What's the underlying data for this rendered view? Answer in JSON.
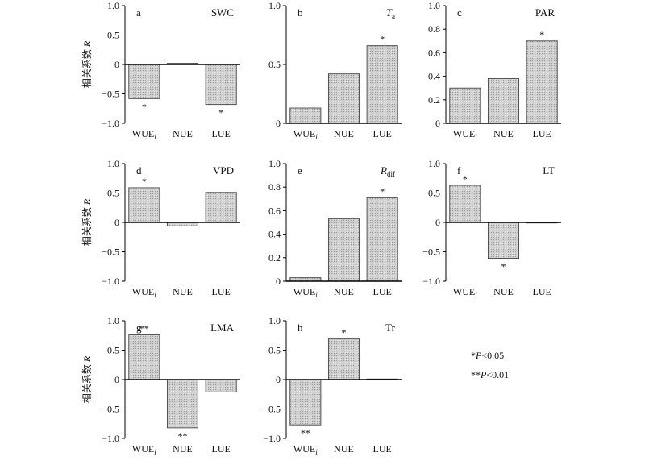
{
  "colors": {
    "bar_fill": "#cfcfcf",
    "bar_stroke": "#444444",
    "axis": "#000000"
  },
  "y_axis_label_prefix": "相关系数",
  "y_axis_label_var": "R",
  "categories": [
    "WUE",
    "NUE",
    "LUE"
  ],
  "first_category_subscript": "i",
  "legend": {
    "line1": {
      "stars": "*",
      "p": "P",
      "rest": "<0.05"
    },
    "line2": {
      "stars": "**",
      "p": "P",
      "rest": "<0.01"
    }
  },
  "chart_data": [
    {
      "type": "bar",
      "letter": "a",
      "title": "SWC",
      "title_main": "SWC",
      "title_sub": "",
      "title_italic": false,
      "categories": [
        "WUEi",
        "NUE",
        "LUE"
      ],
      "values": [
        -0.58,
        0.02,
        -0.68
      ],
      "marks": [
        "*",
        "",
        "*"
      ],
      "ylim": [
        -1.0,
        1.0
      ],
      "yticks": [
        "1.0",
        "0.5",
        "0",
        "−0.5",
        "−1.0"
      ],
      "ylabel": "相关系数 R"
    },
    {
      "type": "bar",
      "letter": "b",
      "title": "Ta",
      "title_main": "T",
      "title_sub": "a",
      "title_italic": true,
      "categories": [
        "WUEi",
        "NUE",
        "LUE"
      ],
      "values": [
        0.13,
        0.42,
        0.66
      ],
      "marks": [
        "",
        "",
        "*"
      ],
      "ylim": [
        0,
        1.0
      ],
      "yticks": [
        "1.0",
        "0.5",
        "0"
      ],
      "ylabel": ""
    },
    {
      "type": "bar",
      "letter": "c",
      "title": "PAR",
      "title_main": "PAR",
      "title_sub": "",
      "title_italic": false,
      "categories": [
        "WUEi",
        "NUE",
        "LUE"
      ],
      "values": [
        0.3,
        0.38,
        0.7
      ],
      "marks": [
        "",
        "",
        "*"
      ],
      "ylim": [
        0,
        1.0
      ],
      "yticks": [
        "1.0",
        "0.8",
        "0.6",
        "0.4",
        "0.2",
        "0"
      ],
      "ylabel": ""
    },
    {
      "type": "bar",
      "letter": "d",
      "title": "VPD",
      "title_main": "VPD",
      "title_sub": "",
      "title_italic": false,
      "categories": [
        "WUEi",
        "NUE",
        "LUE"
      ],
      "values": [
        0.59,
        -0.06,
        0.51
      ],
      "marks": [
        "*",
        "",
        ""
      ],
      "ylim": [
        -1.0,
        1.0
      ],
      "yticks": [
        "1.0",
        "0.5",
        "0",
        "−0.5",
        "−1.0"
      ],
      "ylabel": "相关系数 R"
    },
    {
      "type": "bar",
      "letter": "e",
      "title": "Rdif",
      "title_main": "R",
      "title_sub": "dif",
      "title_italic": true,
      "categories": [
        "WUEi",
        "NUE",
        "LUE"
      ],
      "values": [
        0.03,
        0.53,
        0.71
      ],
      "marks": [
        "",
        "",
        "*"
      ],
      "ylim": [
        0,
        1.0
      ],
      "yticks": [
        "1.0",
        "0.8",
        "0.6",
        "0.4",
        "0.2",
        "0"
      ],
      "ylabel": ""
    },
    {
      "type": "bar",
      "letter": "f",
      "title": "LT",
      "title_main": "LT",
      "title_sub": "",
      "title_italic": false,
      "categories": [
        "WUEi",
        "NUE",
        "LUE"
      ],
      "values": [
        0.63,
        -0.61,
        -0.01
      ],
      "marks": [
        "*",
        "*",
        ""
      ],
      "ylim": [
        -1.0,
        1.0
      ],
      "yticks": [
        "1.0",
        "0.5",
        "0",
        "−0.5",
        "−1.0"
      ],
      "ylabel": ""
    },
    {
      "type": "bar",
      "letter": "g",
      "title": "LMA",
      "title_main": "LMA",
      "title_sub": "",
      "title_italic": false,
      "categories": [
        "WUEi",
        "NUE",
        "LUE"
      ],
      "values": [
        0.76,
        -0.82,
        -0.21
      ],
      "marks": [
        "**",
        "**",
        ""
      ],
      "ylim": [
        -1.0,
        1.0
      ],
      "yticks": [
        "1.0",
        "0.5",
        "0",
        "−0.5",
        "−1.0"
      ],
      "ylabel": "相关系数 R"
    },
    {
      "type": "bar",
      "letter": "h",
      "title": "Tr",
      "title_main": "Tr",
      "title_sub": "",
      "title_italic": false,
      "categories": [
        "WUEi",
        "NUE",
        "LUE"
      ],
      "values": [
        -0.77,
        0.69,
        0.01
      ],
      "marks": [
        "**",
        "*",
        ""
      ],
      "ylim": [
        -1.0,
        1.0
      ],
      "yticks": [
        "1.0",
        "0.5",
        "0",
        "−0.5",
        "−1.0"
      ],
      "ylabel": ""
    }
  ]
}
